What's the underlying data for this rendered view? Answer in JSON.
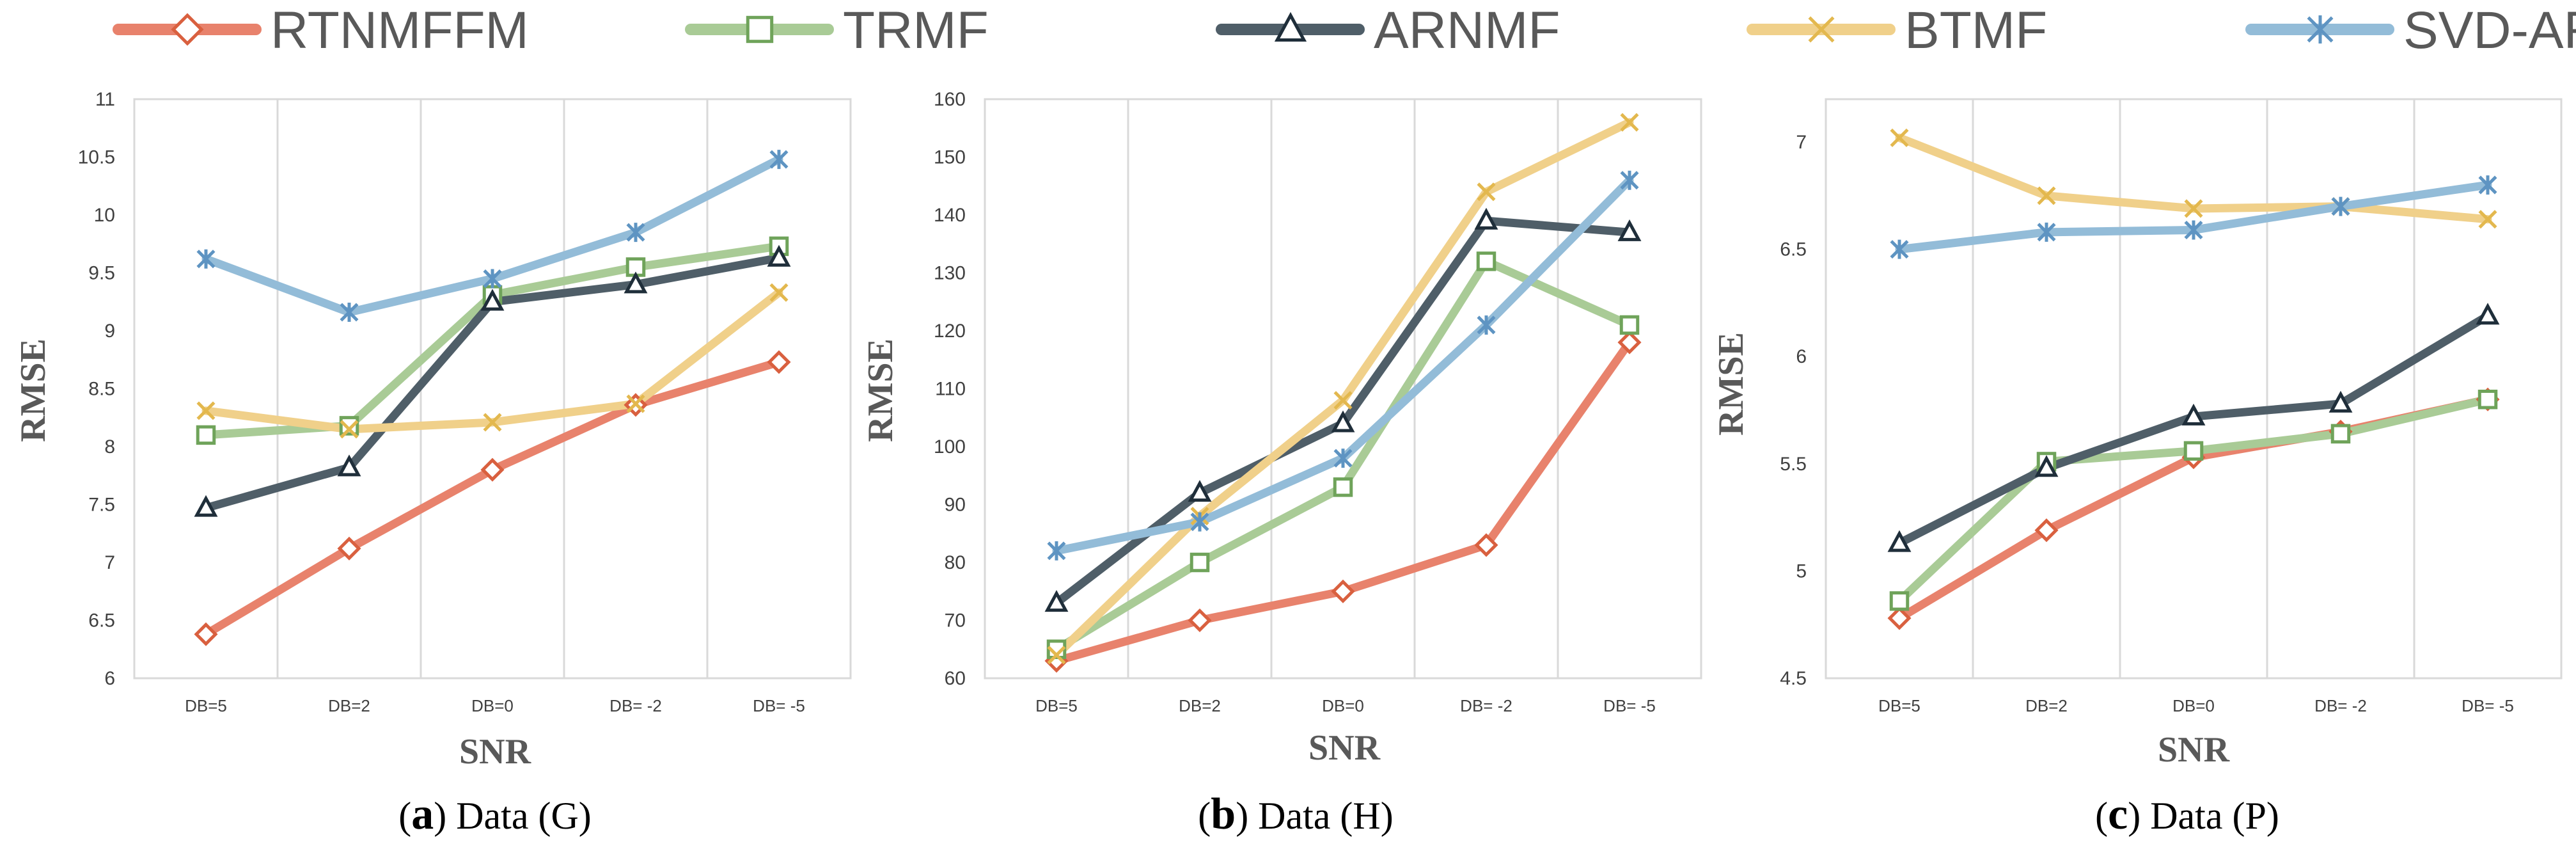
{
  "legend": [
    {
      "name": "RTNMFFM",
      "color": "#E8826C",
      "marker_color": "#D9603F",
      "marker": "diamond"
    },
    {
      "name": "TRMF",
      "color": "#A9CB96",
      "marker_color": "#6FA35A",
      "marker": "square"
    },
    {
      "name": "ARNMF",
      "color": "#4F5E68",
      "marker_color": "#1F2E3A",
      "marker": "triangle"
    },
    {
      "name": "BTMF",
      "color": "#F0D08A",
      "marker_color": "#E3B84E",
      "marker": "x"
    },
    {
      "name": "SVD-AR",
      "color": "#93BCD8",
      "marker_color": "#5E94C2",
      "marker": "star"
    }
  ],
  "chart_data": [
    {
      "type": "line",
      "caption_letter": "a",
      "caption_text": "Data (G)",
      "xlabel": "SNR",
      "ylabel": "RMSE",
      "categories": [
        "DB=5",
        "DB=2",
        "DB=0",
        "DB= -2",
        "DB= -5"
      ],
      "ylim": [
        6,
        11
      ],
      "yticks": [
        "6",
        "6.5",
        "7",
        "7.5",
        "8",
        "8.5",
        "9",
        "9.5",
        "10",
        "10.5",
        "11"
      ],
      "series": [
        {
          "name": "RTNMFFM",
          "values": [
            6.38,
            7.12,
            7.8,
            8.36,
            8.73
          ]
        },
        {
          "name": "TRMF",
          "values": [
            8.1,
            8.18,
            9.31,
            9.55,
            9.73
          ]
        },
        {
          "name": "ARNMF",
          "values": [
            7.47,
            7.82,
            9.25,
            9.4,
            9.63
          ]
        },
        {
          "name": "BTMF",
          "values": [
            8.31,
            8.15,
            8.21,
            8.37,
            9.33
          ]
        },
        {
          "name": "SVD-AR",
          "values": [
            9.62,
            9.16,
            9.45,
            9.85,
            10.48
          ]
        }
      ]
    },
    {
      "type": "line",
      "caption_letter": "b",
      "caption_text": "Data (H)",
      "xlabel": "SNR",
      "ylabel": "RMSE",
      "categories": [
        "DB=5",
        "DB=2",
        "DB=0",
        "DB= -2",
        "DB= -5"
      ],
      "ylim": [
        60,
        160
      ],
      "yticks": [
        "60",
        "70",
        "80",
        "90",
        "100",
        "110",
        "120",
        "130",
        "140",
        "150",
        "160"
      ],
      "series": [
        {
          "name": "RTNMFFM",
          "values": [
            63,
            70,
            75,
            83,
            118
          ]
        },
        {
          "name": "TRMF",
          "values": [
            65,
            80,
            93,
            132,
            121
          ]
        },
        {
          "name": "ARNMF",
          "values": [
            73,
            92,
            104,
            139,
            137
          ]
        },
        {
          "name": "BTMF",
          "values": [
            64,
            88,
            108,
            144,
            156
          ]
        },
        {
          "name": "SVD-AR",
          "values": [
            82,
            87,
            98,
            121,
            146
          ]
        }
      ]
    },
    {
      "type": "line",
      "caption_letter": "c",
      "caption_text": "Data (P)",
      "xlabel": "SNR",
      "ylabel": "RMSE",
      "categories": [
        "DB=5",
        "DB=2",
        "DB=0",
        "DB= -2",
        "DB= -5"
      ],
      "ylim": [
        4.5,
        7.2
      ],
      "yticks": [
        "4.5",
        "5",
        "5.5",
        "6",
        "6.5",
        "7"
      ],
      "series": [
        {
          "name": "RTNMFFM",
          "values": [
            4.78,
            5.19,
            5.53,
            5.65,
            5.8
          ]
        },
        {
          "name": "TRMF",
          "values": [
            4.86,
            5.51,
            5.56,
            5.64,
            5.8
          ]
        },
        {
          "name": "ARNMF",
          "values": [
            5.13,
            5.48,
            5.72,
            5.78,
            6.19
          ]
        },
        {
          "name": "BTMF",
          "values": [
            7.02,
            6.75,
            6.69,
            6.7,
            6.64
          ]
        },
        {
          "name": "SVD-AR",
          "values": [
            6.5,
            6.58,
            6.59,
            6.7,
            6.8
          ]
        }
      ]
    }
  ]
}
